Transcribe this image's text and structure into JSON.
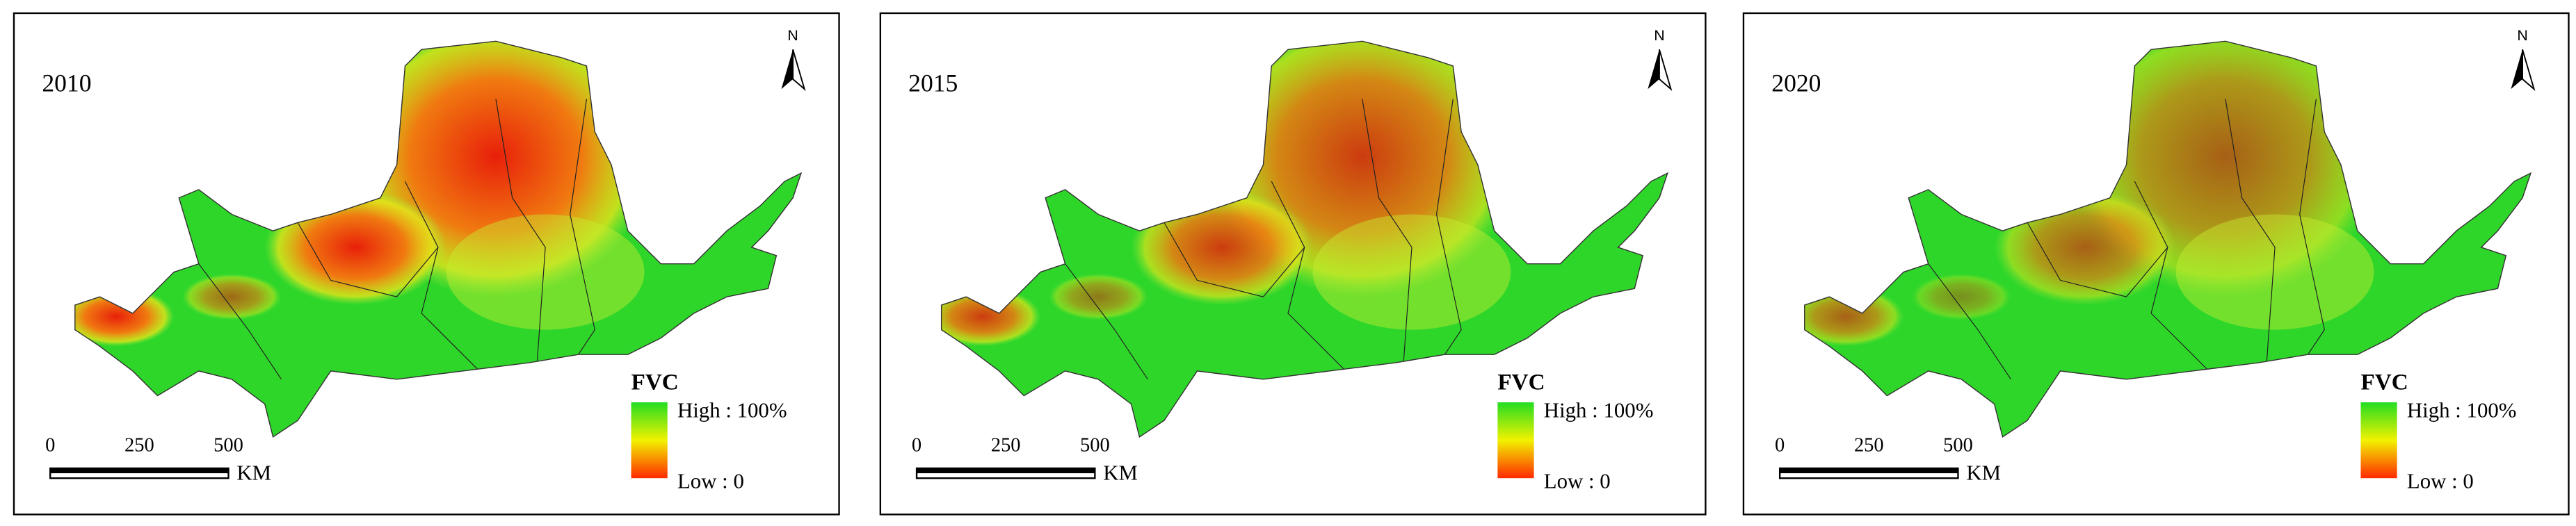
{
  "panels": [
    {
      "year": "2010",
      "north": "N",
      "legend": {
        "title": "FVC",
        "high": "High : 100%",
        "low": "Low : 0"
      },
      "scale_bar": {
        "labels": [
          "0",
          "250",
          "500"
        ],
        "unit": "KM"
      }
    },
    {
      "year": "2015",
      "north": "N",
      "legend": {
        "title": "FVC",
        "high": "High : 100%",
        "low": "Low : 0"
      },
      "scale_bar": {
        "labels": [
          "0",
          "250",
          "500"
        ],
        "unit": "KM"
      }
    },
    {
      "year": "2020",
      "north": "N",
      "legend": {
        "title": "FVC",
        "high": "High : 100%",
        "low": "Low : 0"
      },
      "scale_bar": {
        "labels": [
          "0",
          "250",
          "500"
        ],
        "unit": "KM"
      }
    }
  ]
}
